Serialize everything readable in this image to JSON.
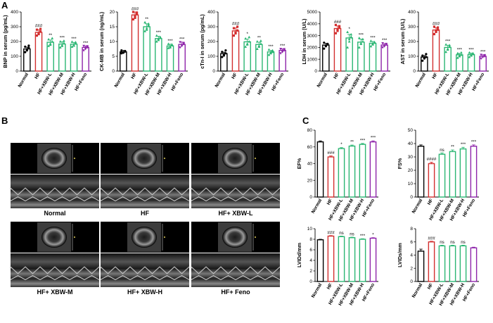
{
  "panels": {
    "A": "A",
    "B": "B",
    "C": "C"
  },
  "colors": {
    "Normal": "#000000",
    "HF": "#d32f2f",
    "HF+XBW-L": "#2bb673",
    "HF+XBW-M": "#2bb673",
    "HF+XBW-H": "#2bb673",
    "HF+Feno": "#8e24aa"
  },
  "echo_labels": [
    "Normal",
    "HF",
    "HF+ XBW-L",
    "HF+ XBW-M",
    "HF+ XBW-H",
    "HF+ Feno"
  ],
  "chart_data": [
    {
      "id": "bnp",
      "type": "bar",
      "ylabel": "BNP in serum (pg/mL)",
      "ylim": [
        0,
        400
      ],
      "ticks": [
        0,
        100,
        200,
        300,
        400
      ],
      "categories": [
        "Normal",
        "HF",
        "HF+XBW-L",
        "HF+XBW-M",
        "HF+XBW-H",
        "HF+Feno"
      ],
      "values": [
        150,
        262,
        195,
        183,
        182,
        160
      ],
      "errors": [
        12,
        18,
        15,
        15,
        12,
        10
      ],
      "points": [
        [
          128,
          145,
          158,
          165,
          140,
          172
        ],
        [
          240,
          252,
          268,
          280,
          250,
          285
        ],
        [
          170,
          185,
          200,
          215,
          178,
          222
        ],
        [
          160,
          175,
          190,
          200,
          170,
          205
        ],
        [
          165,
          175,
          188,
          198,
          172,
          195
        ],
        [
          140,
          150,
          160,
          170,
          155,
          168
        ]
      ],
      "sig": [
        "",
        "###",
        "**",
        "***",
        "***",
        "***"
      ]
    },
    {
      "id": "ckmb",
      "type": "bar",
      "ylabel": "CK-MB in serum (ng/mL)",
      "ylim": [
        0,
        20
      ],
      "ticks": [
        0,
        5,
        10,
        15,
        20
      ],
      "categories": [
        "Normal",
        "HF",
        "HF+XBW-L",
        "HF+XBW-M",
        "HF+XBW-H",
        "HF+Feno"
      ],
      "values": [
        6.5,
        19,
        15,
        11,
        8.5,
        9
      ],
      "errors": [
        0.5,
        1,
        1,
        0.8,
        0.6,
        0.8
      ],
      "points": [
        [
          6,
          6.3,
          6.8,
          7,
          6.2,
          6.6
        ],
        [
          17.5,
          18.5,
          19.5,
          20,
          18,
          19.8
        ],
        [
          13.5,
          14.5,
          15.5,
          16.5,
          14,
          16
        ],
        [
          10,
          10.5,
          11.5,
          12,
          10.8,
          11.2
        ],
        [
          7.8,
          8.2,
          8.8,
          9.2,
          8,
          9
        ],
        [
          8,
          8.5,
          9.2,
          9.8,
          8.7,
          9.5
        ]
      ],
      "sig": [
        "",
        "###",
        "**",
        "***",
        "***",
        "***"
      ]
    },
    {
      "id": "ctni",
      "type": "bar",
      "ylabel": "cTn-I in serum (pg/mL)",
      "ylim": [
        0,
        400
      ],
      "ticks": [
        0,
        100,
        200,
        300,
        400
      ],
      "categories": [
        "Normal",
        "HF",
        "HF+XBW-L",
        "HF+XBW-M",
        "HF+XBW-H",
        "HF+Feno"
      ],
      "values": [
        118,
        272,
        198,
        180,
        130,
        140
      ],
      "errors": [
        10,
        20,
        18,
        15,
        10,
        10
      ],
      "points": [
        [
          95,
          110,
          120,
          130,
          105,
          140
        ],
        [
          240,
          255,
          275,
          290,
          260,
          300
        ],
        [
          165,
          185,
          200,
          220,
          180,
          230
        ],
        [
          150,
          170,
          185,
          200,
          165,
          205
        ],
        [
          110,
          120,
          130,
          145,
          125,
          140
        ],
        [
          120,
          130,
          140,
          150,
          135,
          148
        ]
      ],
      "sig": [
        "",
        "###",
        "*",
        "**",
        "***",
        "***"
      ]
    },
    {
      "id": "ldh",
      "type": "bar",
      "ylabel": "LDH in serum (U/L)",
      "ylim": [
        0,
        5000
      ],
      "ticks": [
        0,
        1000,
        2000,
        3000,
        4000,
        5000
      ],
      "categories": [
        "Normal",
        "HF",
        "HF+XBW-L",
        "HF+XBW-M",
        "HF+XBW-H",
        "HF+Feno"
      ],
      "values": [
        2200,
        3600,
        2800,
        2450,
        2350,
        2200
      ],
      "errors": [
        150,
        220,
        300,
        250,
        150,
        120
      ],
      "points": [
        [
          1900,
          2100,
          2250,
          2400,
          2150,
          2300
        ],
        [
          3200,
          3400,
          3700,
          3900,
          3500,
          3800
        ],
        [
          2000,
          2500,
          2900,
          3300,
          2700,
          3100
        ],
        [
          2000,
          2300,
          2500,
          2800,
          2350,
          2700
        ],
        [
          2100,
          2250,
          2400,
          2550,
          2300,
          2450
        ],
        [
          2000,
          2100,
          2250,
          2350,
          2150,
          2300
        ]
      ],
      "sig": [
        "",
        "###",
        "*",
        "***",
        "***",
        "***"
      ]
    },
    {
      "id": "ast",
      "type": "bar",
      "ylabel": "AST in serum (U/L)",
      "ylim": [
        0,
        400
      ],
      "ticks": [
        0,
        100,
        200,
        300,
        400
      ],
      "categories": [
        "Normal",
        "HF",
        "HF+XBW-L",
        "HF+XBW-M",
        "HF+XBW-H",
        "HF+Feno"
      ],
      "values": [
        95,
        278,
        160,
        110,
        112,
        100
      ],
      "errors": [
        10,
        15,
        15,
        10,
        10,
        10
      ],
      "points": [
        [
          70,
          85,
          95,
          105,
          90,
          115
        ],
        [
          250,
          265,
          280,
          300,
          270,
          295
        ],
        [
          130,
          150,
          165,
          180,
          145,
          175
        ],
        [
          90,
          100,
          110,
          120,
          105,
          125
        ],
        [
          95,
          105,
          115,
          125,
          110,
          120
        ],
        [
          85,
          95,
          100,
          110,
          95,
          108
        ]
      ],
      "sig": [
        "",
        "###",
        "***",
        "***",
        "***",
        "***"
      ]
    },
    {
      "id": "ef",
      "type": "bar",
      "ylabel": "EF%",
      "ylim": [
        0,
        80
      ],
      "ticks": [
        0,
        20,
        40,
        60,
        80
      ],
      "categories": [
        "Normal",
        "HF",
        "HF+XBW-L",
        "HF+XBW-M",
        "HF+XBW-H",
        "HF+Feno"
      ],
      "values": [
        66,
        48,
        58,
        61,
        63,
        66
      ],
      "errors": [
        1.2,
        1.2,
        1.2,
        1.2,
        1.2,
        1.2
      ],
      "points": [],
      "sig": [
        "",
        "###",
        "*",
        "**",
        "***",
        "***"
      ]
    },
    {
      "id": "fs",
      "type": "bar",
      "ylabel": "FS%",
      "ylim": [
        0,
        50
      ],
      "ticks": [
        0,
        10,
        20,
        30,
        40,
        50
      ],
      "categories": [
        "Normal",
        "HF",
        "HF+XBW-L",
        "HF+XBW-M",
        "HF+XBW-H",
        "HF+Feno"
      ],
      "values": [
        38,
        25,
        32,
        34,
        36,
        38
      ],
      "errors": [
        1,
        1,
        1,
        1.2,
        1.2,
        1
      ],
      "points": [],
      "sig": [
        "",
        "####",
        "ns",
        "**",
        "***",
        "***"
      ]
    },
    {
      "id": "lvidd",
      "type": "bar",
      "ylabel": "LVIDd/mm",
      "ylim": [
        0,
        10
      ],
      "ticks": [
        0,
        2,
        4,
        6,
        8,
        10
      ],
      "categories": [
        "Normal",
        "HF",
        "HF+XBW-L",
        "HF+XBW-M",
        "HF+XBW-H",
        "HF+Feno"
      ],
      "values": [
        7.9,
        8.6,
        8.5,
        8.3,
        8.0,
        8.2
      ],
      "errors": [
        0.1,
        0.1,
        0.1,
        0.1,
        0.1,
        0.1
      ],
      "points": [],
      "sig": [
        "",
        "###",
        "ns",
        "ns",
        "***",
        "*"
      ]
    },
    {
      "id": "lvids",
      "type": "bar",
      "ylabel": "LVIDs/mm",
      "ylim": [
        0,
        8
      ],
      "ticks": [
        0,
        2,
        4,
        6,
        8
      ],
      "categories": [
        "Normal",
        "HF",
        "HF+XBW-L",
        "HF+XBW-M",
        "HF+XBW-H",
        "HF+Feno"
      ],
      "values": [
        4.6,
        6.0,
        5.4,
        5.4,
        5.4,
        5.1
      ],
      "errors": [
        0.3,
        0.1,
        0.1,
        0.1,
        0.1,
        0.1
      ],
      "points": [],
      "sig": [
        "",
        "###",
        "ns",
        "ns",
        "ns",
        ""
      ]
    }
  ]
}
